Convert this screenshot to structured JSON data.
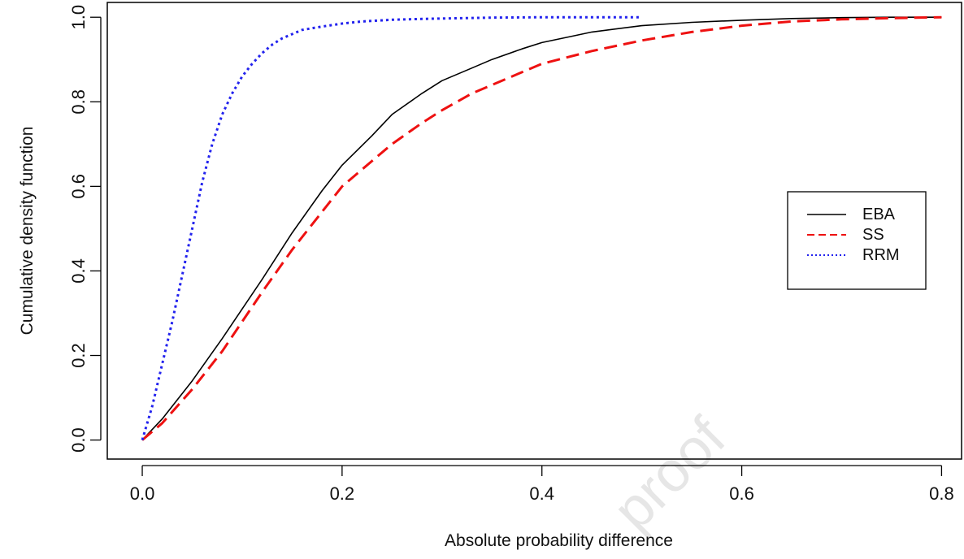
{
  "chart_data": {
    "type": "line",
    "title": "",
    "xlabel": "Absolute probability difference",
    "ylabel": "Cumulative density function",
    "xlim": [
      -0.035,
      0.82
    ],
    "ylim": [
      -0.045,
      1.035
    ],
    "x_ticks": [
      "0.0",
      "0.2",
      "0.4",
      "0.6",
      "0.8"
    ],
    "y_ticks": [
      "0.0",
      "0.2",
      "0.4",
      "0.6",
      "0.8",
      "1.0"
    ],
    "x_tick_values": [
      0.0,
      0.2,
      0.4,
      0.6,
      0.8
    ],
    "y_tick_values": [
      0.0,
      0.2,
      0.4,
      0.6,
      0.8,
      1.0
    ],
    "grid": false,
    "legend_position": "right",
    "watermark": "proof",
    "series": [
      {
        "name": "EBA",
        "color": "#000000",
        "style": "solid",
        "x": [
          0.0,
          0.02,
          0.05,
          0.08,
          0.1,
          0.12,
          0.15,
          0.18,
          0.2,
          0.23,
          0.25,
          0.28,
          0.3,
          0.33,
          0.35,
          0.38,
          0.4,
          0.43,
          0.45,
          0.5,
          0.55,
          0.6,
          0.65,
          0.7,
          0.75,
          0.8
        ],
        "y": [
          0.0,
          0.05,
          0.14,
          0.24,
          0.31,
          0.38,
          0.49,
          0.59,
          0.65,
          0.72,
          0.77,
          0.82,
          0.85,
          0.88,
          0.9,
          0.925,
          0.94,
          0.955,
          0.965,
          0.98,
          0.988,
          0.993,
          0.997,
          0.999,
          1.0,
          1.0
        ]
      },
      {
        "name": "SS",
        "color": "#ee1111",
        "style": "dashed",
        "x": [
          0.0,
          0.02,
          0.05,
          0.08,
          0.1,
          0.12,
          0.15,
          0.18,
          0.2,
          0.23,
          0.25,
          0.28,
          0.3,
          0.33,
          0.35,
          0.38,
          0.4,
          0.45,
          0.5,
          0.55,
          0.6,
          0.65,
          0.7,
          0.75,
          0.8
        ],
        "y": [
          0.0,
          0.04,
          0.12,
          0.21,
          0.28,
          0.35,
          0.45,
          0.54,
          0.6,
          0.66,
          0.7,
          0.75,
          0.78,
          0.82,
          0.84,
          0.87,
          0.89,
          0.92,
          0.945,
          0.965,
          0.98,
          0.99,
          0.995,
          0.998,
          1.0
        ]
      },
      {
        "name": "RRM",
        "color": "#2222ee",
        "style": "dotted",
        "x": [
          0.0,
          0.01,
          0.02,
          0.03,
          0.04,
          0.05,
          0.06,
          0.07,
          0.08,
          0.09,
          0.1,
          0.11,
          0.12,
          0.13,
          0.14,
          0.15,
          0.16,
          0.18,
          0.2,
          0.22,
          0.25,
          0.28,
          0.3,
          0.35,
          0.4,
          0.45,
          0.5
        ],
        "y": [
          0.0,
          0.08,
          0.18,
          0.28,
          0.39,
          0.5,
          0.61,
          0.7,
          0.77,
          0.82,
          0.86,
          0.89,
          0.915,
          0.935,
          0.95,
          0.96,
          0.97,
          0.978,
          0.985,
          0.99,
          0.994,
          0.996,
          0.997,
          0.999,
          1.0,
          1.0,
          1.0
        ]
      }
    ]
  }
}
